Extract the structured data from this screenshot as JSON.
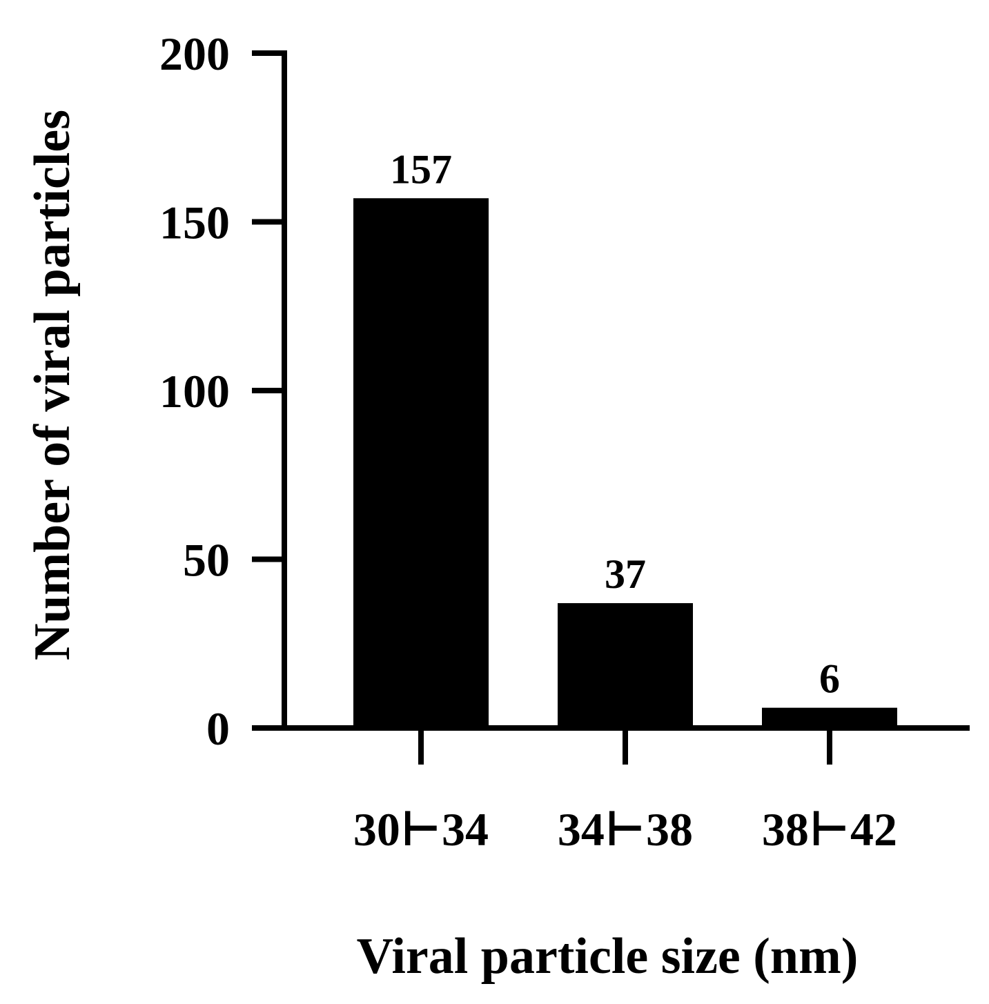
{
  "chart_data": {
    "type": "bar",
    "title": "",
    "xlabel": "Viral particle size (nm)",
    "ylabel": "Number of viral particles",
    "categories": [
      "30⊢34",
      "34⊢38",
      "38⊢42"
    ],
    "values": [
      157,
      37,
      6
    ],
    "data_labels": [
      "157",
      "37",
      "6"
    ],
    "ylim": [
      0,
      200
    ],
    "yticks": [
      0,
      50,
      100,
      150,
      200
    ],
    "ytick_labels": [
      "0",
      "50",
      "100",
      "150",
      "200"
    ],
    "grid": false,
    "legend": "none",
    "bar_color": "#000000"
  }
}
